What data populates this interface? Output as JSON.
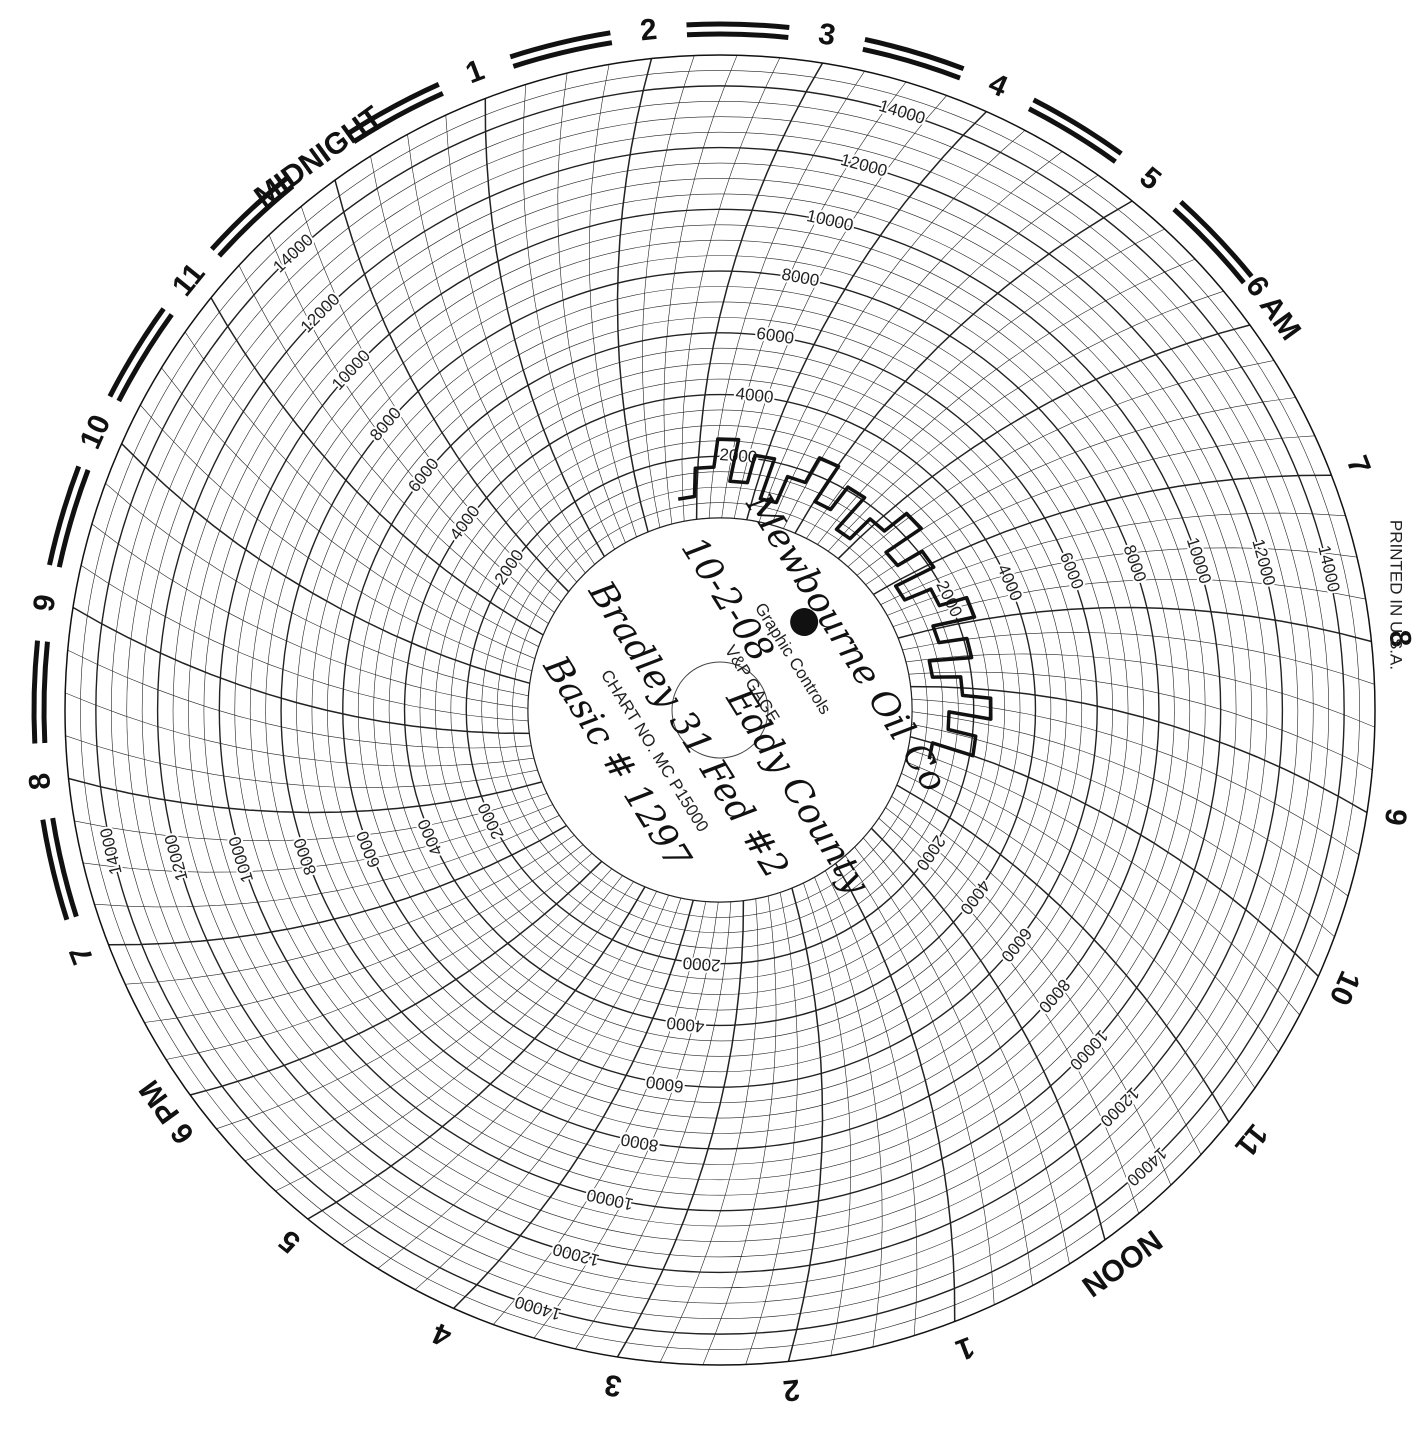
{
  "hour_labels": [
    "MIDNIGHT",
    "1",
    "2",
    "3",
    "4",
    "5",
    "6 AM",
    "7",
    "8",
    "9",
    "10",
    "11",
    "NOON",
    "1",
    "2",
    "3",
    "4",
    "5",
    "6 PM",
    "7",
    "8",
    "9",
    "10",
    "11"
  ],
  "scale_labels": [
    2000,
    4000,
    6000,
    8000,
    10000,
    12000,
    14000
  ],
  "center": {
    "brand": "Graphic Controls",
    "gage": "V&P GAGE",
    "chart_no": "CHART NO. MC P15000"
  },
  "handwriting": {
    "company": "Mewbourne Oil Co",
    "date": "10-2-08",
    "county": "Eddy County",
    "well": "Bradley 31 Fed #2",
    "basic": "Basic # 1297"
  },
  "footer": "PRINTED IN U.S.A."
}
